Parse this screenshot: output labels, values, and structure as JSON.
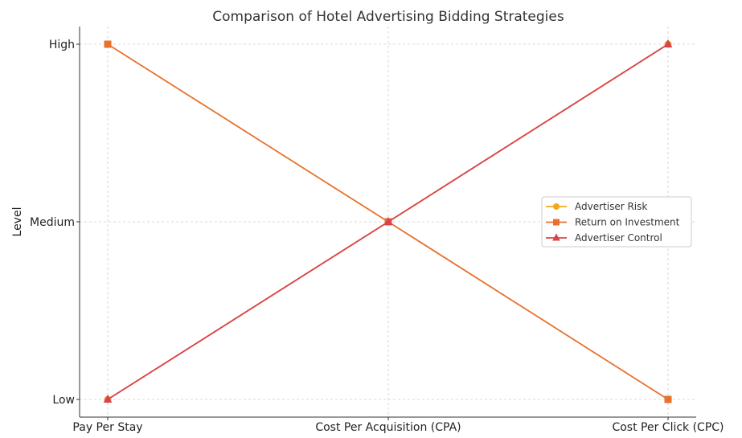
{
  "chart_data": {
    "type": "line",
    "title": "Comparison of Hotel Advertising Bidding Strategies",
    "xlabel": "",
    "ylabel": "Level",
    "categories": [
      "Pay Per Stay",
      "Cost Per Acquisition (CPA)",
      "Cost Per Click (CPC)"
    ],
    "y_ticks": [
      "Low",
      "Medium",
      "High"
    ],
    "ylim": [
      0,
      2
    ],
    "grid": true,
    "legend_position": "center-right",
    "series": [
      {
        "name": "Advertiser Risk",
        "values": [
          0,
          1,
          2
        ],
        "color": "#f2a81d",
        "marker": "circle"
      },
      {
        "name": "Return on Investment",
        "values": [
          2,
          1,
          0
        ],
        "color": "#e8712c",
        "marker": "square"
      },
      {
        "name": "Advertiser Control",
        "values": [
          0,
          1,
          2
        ],
        "color": "#d9434e",
        "marker": "triangle"
      }
    ]
  }
}
